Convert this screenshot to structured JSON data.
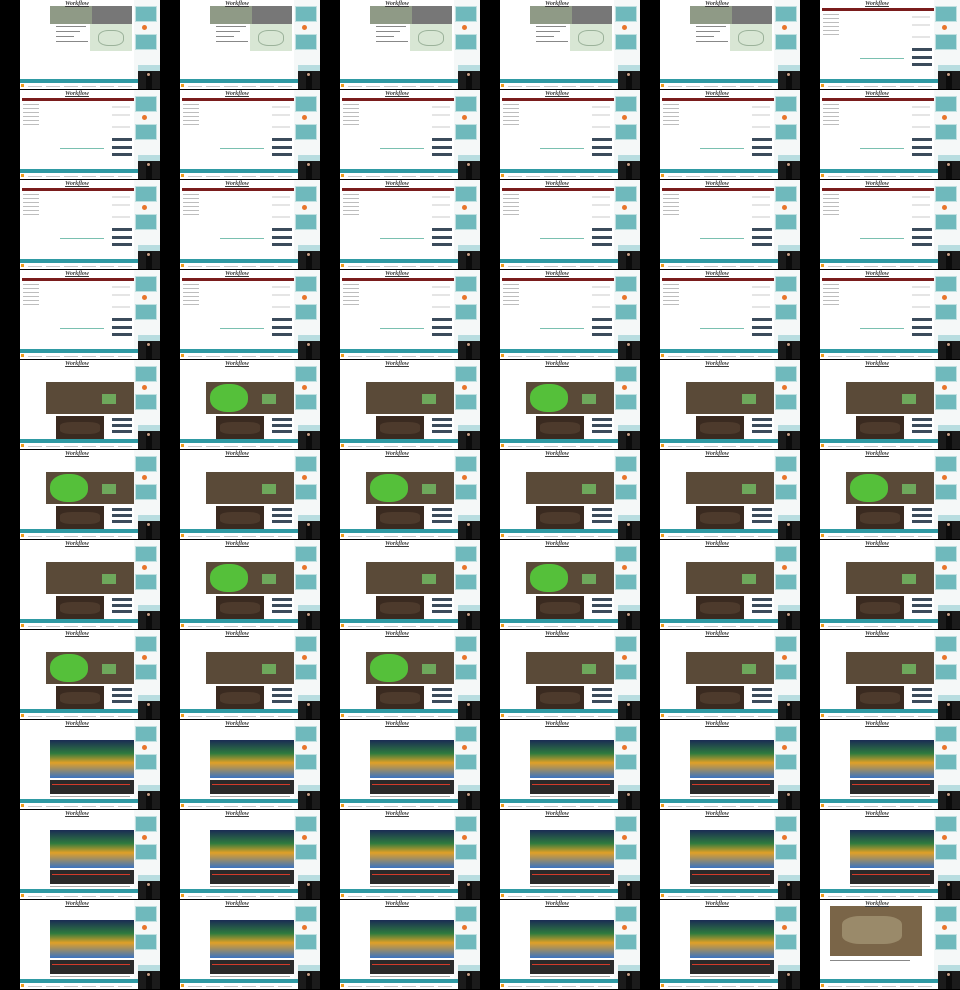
{
  "title": "Workflow",
  "frames": [
    "drone",
    "drone",
    "drone",
    "drone",
    "drone",
    "form",
    "form",
    "form",
    "form",
    "form",
    "form",
    "form",
    "form",
    "form",
    "form",
    "form",
    "form",
    "form",
    "form",
    "form",
    "form",
    "form",
    "form",
    "form",
    "photo",
    "photo-heat",
    "photo",
    "photo-heat",
    "photo",
    "photo",
    "photo-heat",
    "photo",
    "photo-heat",
    "photo",
    "photo",
    "photo-heat",
    "photo",
    "photo-heat",
    "photo",
    "photo-heat",
    "photo",
    "photo",
    "photo-heat",
    "photo",
    "photo-heat",
    "photo",
    "photo",
    "photo",
    "terrain",
    "terrain",
    "terrain",
    "terrain",
    "terrain",
    "terrain",
    "terrain",
    "terrain",
    "terrain",
    "terrain",
    "terrain",
    "terrain",
    "terrain",
    "terrain",
    "terrain",
    "terrain",
    "terrain",
    "aerial"
  ],
  "colors": {
    "teal": "#2f9aa3",
    "cyan_box": "#6fb9bc",
    "orange_dot": "#e8762c",
    "form_header": "#7a1c1c"
  }
}
